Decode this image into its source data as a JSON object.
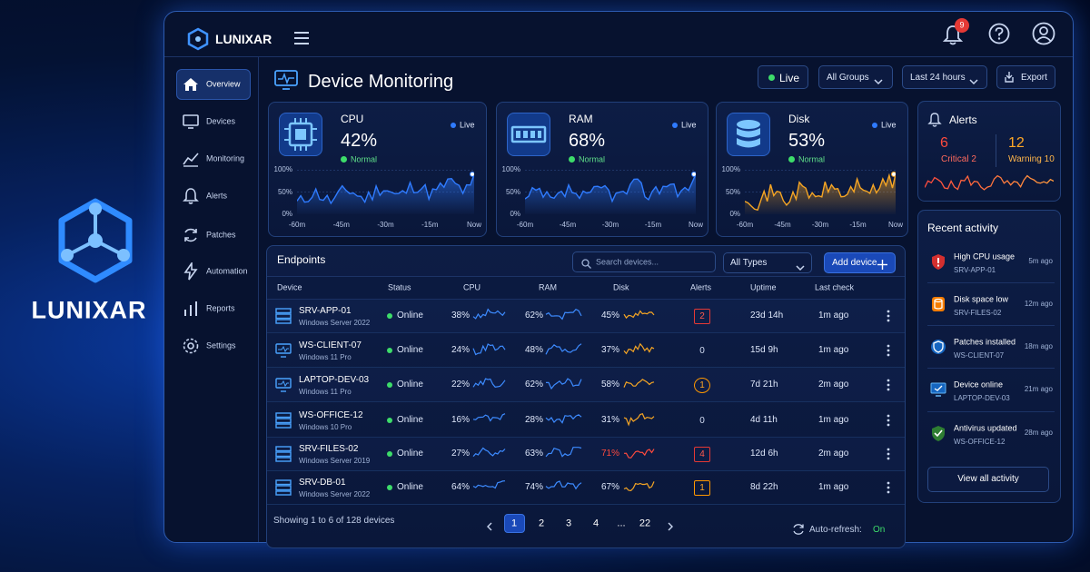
{
  "brand": {
    "name": "LUNIXAR"
  },
  "topbar": {
    "logo": "LUNIXAR",
    "notifications": "9"
  },
  "sidebar": [
    "Overview",
    "Devices",
    "Monitoring",
    "Alerts",
    "Patches",
    "Automation",
    "Reports",
    "Settings"
  ],
  "header": {
    "title": "Device Monitoring",
    "live": "Live",
    "group": "All Groups",
    "range": "Last 24 hours",
    "export": "Export"
  },
  "metrics": [
    {
      "label": "CPU",
      "value": "42%",
      "status": "Normal",
      "live": "Live",
      "yticks": [
        "100%",
        "50%",
        "0%"
      ],
      "xticks": [
        "-60m",
        "-45m",
        "-30m",
        "-15m",
        "Now"
      ]
    },
    {
      "label": "RAM",
      "value": "68%",
      "status": "Normal",
      "live": "Live",
      "yticks": [
        "100%",
        "50%",
        "0%"
      ],
      "xticks": [
        "-60m",
        "-45m",
        "-30m",
        "-15m",
        "Now"
      ]
    },
    {
      "label": "Disk",
      "value": "53%",
      "status": "Normal",
      "live": "Live",
      "yticks": [
        "100%",
        "50%",
        "0%"
      ],
      "xticks": [
        "-60m",
        "-45m",
        "-30m",
        "-15m",
        "Now"
      ]
    }
  ],
  "alerts": {
    "title": "Alerts",
    "critical_count": "6",
    "critical_label": "Critical 2",
    "warning_count": "12",
    "warning_label": "Warning 10"
  },
  "endpoints": {
    "title": "Endpoints",
    "search": "Search devices...",
    "filter": "All Types",
    "add": "Add device",
    "columns": [
      "Device",
      "Status",
      "CPU",
      "RAM",
      "Disk",
      "Alerts",
      "Uptime",
      "Last check"
    ],
    "rows": [
      {
        "device": "SRV-APP-01",
        "os": "Windows Server 2022",
        "status": "Online",
        "cpu": "38%",
        "ram": "62%",
        "disk": "45%",
        "alerts": "2",
        "uptime": "23d 14h",
        "last_check": "1m ago"
      },
      {
        "device": "WS-CLIENT-07",
        "os": "Windows 11 Pro",
        "status": "Online",
        "cpu": "24%",
        "ram": "48%",
        "disk": "37%",
        "alerts": "0",
        "uptime": "15d 9h",
        "last_check": "1m ago"
      },
      {
        "device": "LAPTOP-DEV-03",
        "os": "Windows 11 Pro",
        "status": "Online",
        "cpu": "22%",
        "ram": "62%",
        "disk": "58%",
        "alerts": "1",
        "uptime": "7d 21h",
        "last_check": "2m ago"
      },
      {
        "device": "WS-OFFICE-12",
        "os": "Windows 10 Pro",
        "status": "Online",
        "cpu": "16%",
        "ram": "28%",
        "disk": "31%",
        "alerts": "0",
        "uptime": "4d 11h",
        "last_check": "1m ago"
      },
      {
        "device": "SRV-FILES-02",
        "os": "Windows Server 2019",
        "status": "Online",
        "cpu": "27%",
        "ram": "63%",
        "disk": "71%",
        "alerts": "4",
        "uptime": "12d 6h",
        "last_check": "2m ago"
      },
      {
        "device": "SRV-DB-01",
        "os": "Windows Server 2022",
        "status": "Online",
        "cpu": "64%",
        "ram": "74%",
        "disk": "67%",
        "alerts": "1",
        "uptime": "8d 22h",
        "last_check": "1m ago"
      }
    ],
    "footer": "Showing 1 to 6 of 128 devices",
    "pages": [
      "1",
      "2",
      "3",
      "4",
      "...",
      "22"
    ],
    "auto_refresh": "Auto-refresh:",
    "auto_refresh_state": "On"
  },
  "activity": {
    "title": "Recent activity",
    "items": [
      {
        "title": "High CPU usage",
        "device": "SRV-APP-01",
        "time": "5m ago"
      },
      {
        "title": "Disk space low",
        "device": "SRV-FILES-02",
        "time": "12m ago"
      },
      {
        "title": "Patches installed",
        "device": "WS-CLIENT-07",
        "time": "18m ago"
      },
      {
        "title": "Device online",
        "device": "LAPTOP-DEV-03",
        "time": "21m ago"
      },
      {
        "title": "Antivirus updated",
        "device": "WS-OFFICE-12",
        "time": "28m ago"
      }
    ],
    "view_all": "View all activity"
  }
}
